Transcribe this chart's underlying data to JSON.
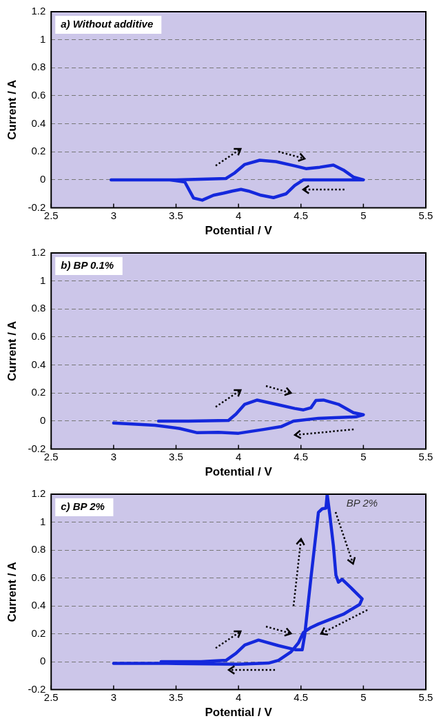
{
  "chart_data": [
    {
      "type": "line",
      "title": "a) Without additive",
      "xlabel": "Potential / V",
      "ylabel": "Current / A",
      "xlim": [
        2.5,
        5.5
      ],
      "xticks": [
        2.5,
        3,
        3.5,
        4,
        4.5,
        5,
        5.5
      ],
      "ylim": [
        -0.2,
        1.2
      ],
      "yticks": [
        -0.2,
        0,
        0.2,
        0.4,
        0.6,
        0.8,
        1,
        1.2
      ],
      "grid": "y",
      "series": [
        {
          "color": "#1428dc",
          "x": [
            2.98,
            3.5,
            3.9,
            3.97,
            4.05,
            4.17,
            4.3,
            4.45,
            4.54,
            4.65,
            4.76,
            4.84,
            4.92,
            5.0,
            4.8,
            4.52,
            4.45,
            4.38,
            4.28,
            4.18,
            4.08,
            4.02,
            3.95,
            3.88,
            3.8,
            3.71,
            3.64,
            3.57,
            3.45,
            3.33
          ],
          "values": [
            0,
            0,
            0.01,
            0.05,
            0.11,
            0.14,
            0.13,
            0.1,
            0.08,
            0.09,
            0.105,
            0.07,
            0.02,
            0,
            0,
            0,
            -0.04,
            -0.1,
            -0.127,
            -0.11,
            -0.08,
            -0.068,
            -0.08,
            -0.095,
            -0.11,
            -0.145,
            -0.13,
            -0.015,
            0,
            0
          ]
        }
      ]
    },
    {
      "type": "line",
      "title": "b) BP 0.1%",
      "xlabel": "Potential / V",
      "ylabel": "Current / A",
      "xlim": [
        2.5,
        5.5
      ],
      "xticks": [
        2.5,
        3,
        3.5,
        4,
        4.5,
        5,
        5.5
      ],
      "ylim": [
        -0.2,
        1.2
      ],
      "yticks": [
        -0.2,
        0,
        0.2,
        0.4,
        0.6,
        0.8,
        1,
        1.2
      ],
      "grid": "y",
      "series": [
        {
          "color": "#1428dc",
          "x": [
            3.36,
            3.6,
            3.92,
            3.98,
            4.05,
            4.15,
            4.3,
            4.45,
            4.52,
            4.58,
            4.62,
            4.68,
            4.8,
            4.92,
            5.0,
            4.94,
            4.64,
            4.44,
            4.34,
            4.2,
            4.0,
            3.84,
            3.67,
            3.53,
            3.33,
            3.0
          ],
          "values": [
            0,
            0,
            0.005,
            0.05,
            0.12,
            0.15,
            0.12,
            0.09,
            0.08,
            0.095,
            0.147,
            0.15,
            0.12,
            0.06,
            0.045,
            0.03,
            0.02,
            0,
            -0.04,
            -0.06,
            -0.087,
            -0.08,
            -0.083,
            -0.053,
            -0.03,
            -0.014
          ]
        }
      ]
    },
    {
      "type": "line",
      "title": "c) BP 2%",
      "xlabel": "Potential / V",
      "ylabel": "Current / A",
      "xlim": [
        2.5,
        5.5
      ],
      "xticks": [
        2.5,
        3,
        3.5,
        4,
        4.5,
        5,
        5.5
      ],
      "ylim": [
        -0.2,
        1.2
      ],
      "yticks": [
        -0.2,
        0,
        0.2,
        0.4,
        0.6,
        0.8,
        1,
        1.2
      ],
      "grid": "y",
      "series": [
        {
          "name": "BP 2%",
          "color": "#1428dc",
          "x": [
            3.38,
            3.7,
            3.9,
            3.98,
            4.05,
            4.16,
            4.32,
            4.46,
            4.51,
            4.53,
            4.58,
            4.64,
            4.67,
            4.7,
            4.71,
            4.73,
            4.76,
            4.78,
            4.8,
            4.83,
            4.9,
            4.99,
            4.97,
            4.84,
            4.64,
            4.58,
            4.52,
            4.48,
            4.42,
            4.32,
            4.24,
            4.0,
            3.43,
            3.0
          ],
          "values": [
            0,
            0,
            0.01,
            0.06,
            0.12,
            0.155,
            0.115,
            0.085,
            0.085,
            0.19,
            0.6,
            1.07,
            1.095,
            1.1,
            1.2,
            1.06,
            0.83,
            0.62,
            0.57,
            0.59,
            0.53,
            0.45,
            0.41,
            0.34,
            0.27,
            0.245,
            0.21,
            0.135,
            0.07,
            0.01,
            -0.01,
            -0.018,
            -0.012,
            -0.012
          ]
        }
      ]
    }
  ]
}
